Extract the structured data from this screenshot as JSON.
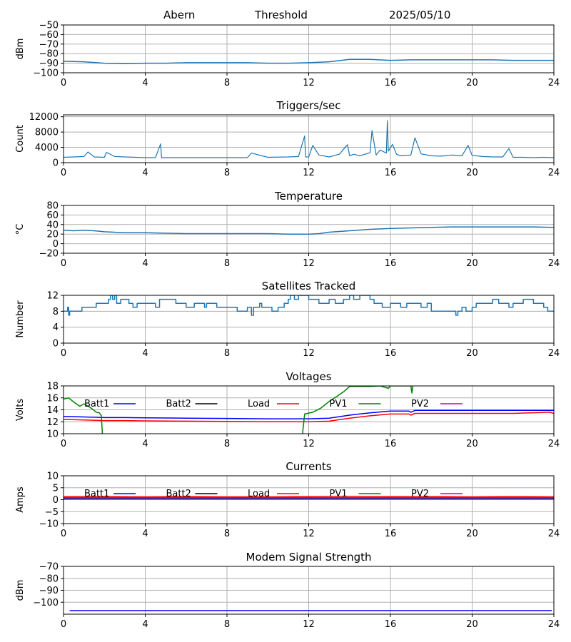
{
  "header": {
    "station": "Abern",
    "mode": "Threshold",
    "date": "2025/05/10"
  },
  "colors": {
    "series": "#1f77b4",
    "grid": "#b0b0b0",
    "batt1": "#0000ff",
    "batt2": "#000000",
    "load": "#ff0000",
    "pv1": "#008000",
    "pv2": "#bf00bf"
  },
  "chart_data": [
    {
      "id": "threshold",
      "type": "line",
      "title": "",
      "ylabel": "dBm",
      "xlim": [
        0,
        24
      ],
      "xticks": [
        0,
        4,
        8,
        12,
        16,
        20,
        24
      ],
      "ylim": [
        -100,
        -50
      ],
      "yticks": [
        -100,
        -90,
        -80,
        -70,
        -60,
        -50
      ],
      "grid": true,
      "legend": null,
      "series": [
        {
          "color": "#1f77b4",
          "width": 1.5,
          "x": [
            0,
            1,
            2,
            3,
            4,
            5,
            6,
            7,
            8,
            9,
            10,
            11,
            12,
            13,
            14,
            15,
            16,
            17,
            18,
            19,
            20,
            21,
            22,
            23,
            24
          ],
          "y": [
            -88,
            -88.5,
            -90,
            -90.5,
            -90,
            -90,
            -89.5,
            -89.5,
            -89.5,
            -89.5,
            -90,
            -90,
            -89.5,
            -88.5,
            -86,
            -86,
            -87,
            -86.5,
            -86.5,
            -86.5,
            -86.5,
            -86.5,
            -87,
            -87,
            -87
          ]
        }
      ]
    },
    {
      "id": "triggers",
      "type": "line",
      "title": "Triggers/sec",
      "ylabel": "Count",
      "xlim": [
        0,
        24
      ],
      "xticks": [
        0,
        4,
        8,
        12,
        16,
        20,
        24
      ],
      "ylim": [
        0,
        12500
      ],
      "yticks": [
        0,
        4000,
        8000,
        12000
      ],
      "grid": true,
      "legend": null,
      "series": [
        {
          "color": "#1f77b4",
          "width": 1.2,
          "x": [
            0,
            0.5,
            1,
            1.2,
            1.5,
            2,
            2.1,
            2.5,
            3,
            3.5,
            4,
            4.5,
            4.75,
            4.8,
            5,
            6,
            7,
            8,
            9,
            9.2,
            10,
            11,
            11.5,
            11.8,
            11.85,
            12,
            12.2,
            12.5,
            13,
            13.5,
            13.9,
            14,
            14.2,
            14.5,
            15,
            15.1,
            15.3,
            15.5,
            15.8,
            15.85,
            15.9,
            16.1,
            16.3,
            16.5,
            17,
            17.2,
            17.5,
            18,
            18.5,
            19,
            19.5,
            19.8,
            20,
            20.5,
            21,
            21.5,
            21.8,
            22,
            22.5,
            23,
            23.5,
            24
          ],
          "y": [
            1400,
            1500,
            1600,
            2800,
            1500,
            1400,
            2700,
            1600,
            1500,
            1400,
            1300,
            1300,
            4900,
            1300,
            1300,
            1300,
            1300,
            1300,
            1300,
            2500,
            1400,
            1500,
            1600,
            7000,
            1500,
            1500,
            4500,
            2000,
            1500,
            2200,
            4700,
            1800,
            2200,
            1800,
            2600,
            8400,
            2000,
            3300,
            2500,
            11000,
            3000,
            4800,
            2200,
            1800,
            2000,
            6500,
            2300,
            1800,
            1700,
            2000,
            1800,
            4500,
            1900,
            1600,
            1500,
            1500,
            3700,
            1400,
            1400,
            1300,
            1400,
            1300
          ]
        }
      ]
    },
    {
      "id": "temperature",
      "type": "line",
      "title": "Temperature",
      "ylabel": "°C",
      "xlim": [
        0,
        24
      ],
      "xticks": [
        0,
        4,
        8,
        12,
        16,
        20,
        24
      ],
      "ylim": [
        -20,
        80
      ],
      "yticks": [
        -20,
        0,
        20,
        40,
        60,
        80
      ],
      "grid": true,
      "legend": null,
      "series": [
        {
          "color": "#1f77b4",
          "width": 1.5,
          "x": [
            0,
            0.5,
            1,
            1.5,
            2,
            3,
            4,
            5,
            6,
            7,
            8,
            9,
            10,
            11,
            12,
            12.5,
            13,
            14,
            15,
            16,
            17,
            18,
            19,
            20,
            21,
            22,
            23,
            24
          ],
          "y": [
            28,
            27,
            28,
            27,
            25,
            23,
            23,
            22,
            21,
            21,
            21,
            21,
            21,
            20,
            20,
            21,
            24,
            27,
            30,
            32,
            33,
            34,
            35,
            35,
            35,
            35,
            35,
            34
          ]
        }
      ]
    },
    {
      "id": "satellites",
      "type": "line",
      "title": "Satellites Tracked",
      "ylabel": "Number",
      "xlim": [
        0,
        24
      ],
      "xticks": [
        0,
        4,
        8,
        12,
        16,
        20,
        24
      ],
      "ylim": [
        0,
        12
      ],
      "yticks": [
        0,
        4,
        8,
        12
      ],
      "grid": true,
      "legend": null,
      "step": true,
      "series": [
        {
          "color": "#1f77b4",
          "width": 1.5,
          "x": [
            0,
            0.2,
            0.25,
            0.3,
            0.9,
            1.6,
            2.2,
            2.3,
            2.4,
            2.5,
            2.6,
            2.8,
            3.2,
            3.4,
            3.6,
            4,
            4.5,
            4.7,
            5.5,
            6,
            6.4,
            6.9,
            7,
            7.5,
            8,
            8.5,
            9,
            9.2,
            9.3,
            9.6,
            9.7,
            10.2,
            10.5,
            10.8,
            11,
            11.1,
            11.3,
            11.5,
            12,
            12.5,
            13,
            13.3,
            13.7,
            14,
            14.2,
            14.5,
            15,
            15.2,
            15.6,
            16,
            16.3,
            16.5,
            16.8,
            17,
            17.5,
            17.8,
            18,
            18.5,
            19,
            19.2,
            19.3,
            19.5,
            19.7,
            20,
            20.2,
            21,
            21.3,
            21.8,
            22,
            22.5,
            23,
            23.5,
            23.7,
            24
          ],
          "y": [
            8,
            9,
            7,
            8,
            9,
            10,
            11,
            12,
            11,
            12,
            10,
            11,
            10,
            9,
            10,
            10,
            9,
            11,
            10,
            9,
            10,
            9,
            10,
            9,
            9,
            8,
            9,
            7,
            9,
            10,
            9,
            8,
            9,
            10,
            11,
            12,
            11,
            12,
            11,
            10,
            11,
            10,
            11,
            12,
            11,
            12,
            11,
            10,
            9,
            10,
            10,
            9,
            10,
            10,
            9,
            10,
            8,
            8,
            8,
            7,
            8,
            9,
            8,
            9,
            10,
            11,
            10,
            9,
            10,
            11,
            10,
            9,
            8,
            8
          ]
        }
      ]
    },
    {
      "id": "voltages",
      "type": "line",
      "title": "Voltages",
      "ylabel": "Volts",
      "xlim": [
        0,
        24
      ],
      "xticks": [
        0,
        4,
        8,
        12,
        16,
        20,
        24
      ],
      "ylim": [
        10,
        18
      ],
      "yticks": [
        10,
        12,
        14,
        16,
        18
      ],
      "grid": true,
      "legend": "top",
      "series": [
        {
          "name": "Batt1",
          "color": "#0000ff",
          "width": 1.5,
          "x": [
            0,
            1,
            2,
            3,
            4,
            6,
            8,
            10,
            12,
            13,
            14,
            15,
            16,
            16.9,
            17,
            17.2,
            18,
            20,
            22,
            24
          ],
          "y": [
            12.9,
            12.8,
            12.7,
            12.7,
            12.65,
            12.6,
            12.55,
            12.5,
            12.5,
            12.6,
            13.1,
            13.5,
            13.8,
            13.8,
            13.6,
            13.9,
            13.9,
            13.9,
            13.9,
            13.9
          ]
        },
        {
          "name": "Batt2",
          "color": "#000000",
          "width": 1.5,
          "x": [],
          "y": []
        },
        {
          "name": "Load",
          "color": "#ff0000",
          "width": 1.5,
          "x": [
            0,
            1,
            2,
            3,
            4,
            6,
            8,
            10,
            12,
            13,
            14,
            15,
            16,
            16.9,
            17,
            17.2,
            18,
            20,
            22,
            23.8,
            24
          ],
          "y": [
            12.4,
            12.3,
            12.2,
            12.2,
            12.15,
            12.1,
            12.05,
            12.0,
            12.0,
            12.1,
            12.6,
            13.0,
            13.3,
            13.3,
            13.1,
            13.4,
            13.4,
            13.4,
            13.4,
            13.6,
            13.4
          ]
        },
        {
          "name": "PV1",
          "color": "#008000",
          "width": 1.5,
          "x": [
            0,
            0.25,
            0.5,
            0.8,
            1.0,
            1.3,
            1.5,
            1.6,
            1.75,
            1.85,
            1.9
          ],
          "y": [
            15.8,
            16.0,
            15.3,
            14.6,
            15.0,
            14.4,
            13.9,
            13.6,
            13.5,
            13.0,
            10
          ],
          "x2": [
            11.7,
            11.8,
            12.2,
            12.6,
            13.0,
            13.4,
            13.7,
            14.0,
            15.0,
            15.5,
            15.9,
            16.0,
            16.5,
            17.0,
            17.05,
            17.1
          ],
          "y2": [
            10,
            13.3,
            13.6,
            14.3,
            15.4,
            16.3,
            17.0,
            17.9,
            17.9,
            18.0,
            17.6,
            18.0,
            18.0,
            18.0,
            16.8,
            18.0
          ]
        },
        {
          "name": "PV2",
          "color": "#bf00bf",
          "width": 1.5,
          "x": [],
          "y": []
        }
      ]
    },
    {
      "id": "currents",
      "type": "line",
      "title": "Currents",
      "ylabel": "Amps",
      "xlim": [
        0,
        24
      ],
      "xticks": [
        0,
        4,
        8,
        12,
        16,
        20,
        24
      ],
      "ylim": [
        -10,
        10
      ],
      "yticks": [
        -10,
        -5,
        0,
        5,
        10
      ],
      "grid": true,
      "legend": "top",
      "series": [
        {
          "name": "Batt1",
          "color": "#0000ff",
          "width": 1.5,
          "x": [
            0,
            24
          ],
          "y": [
            0.5,
            0.5
          ]
        },
        {
          "name": "Batt2",
          "color": "#000000",
          "width": 1.5,
          "x": [],
          "y": []
        },
        {
          "name": "Load",
          "color": "#ff0000",
          "width": 1.5,
          "x": [
            0,
            2,
            4,
            6,
            8,
            10,
            12,
            14,
            16,
            18,
            20,
            22,
            24
          ],
          "y": [
            1.3,
            1.3,
            1.2,
            1.3,
            1.2,
            1.2,
            1.3,
            1.4,
            1.3,
            1.3,
            1.2,
            1.3,
            1.2
          ]
        },
        {
          "name": "PV1",
          "color": "#008000",
          "width": 1.5,
          "x": [
            0,
            24
          ],
          "y": [
            0.8,
            0.8
          ]
        },
        {
          "name": "PV2",
          "color": "#bf00bf",
          "width": 1.5,
          "x": [
            0,
            24
          ],
          "y": [
            0.2,
            0.2
          ]
        }
      ]
    },
    {
      "id": "modem",
      "type": "line",
      "title": "Modem Signal Strength",
      "ylabel": "dBm",
      "xlim": [
        0,
        24
      ],
      "xticks": [
        0,
        4,
        8,
        12,
        16,
        20,
        24
      ],
      "ylim": [
        -110,
        -70
      ],
      "yticks": [
        -100,
        -90,
        -80,
        -70
      ],
      "grid": true,
      "legend": null,
      "series": [
        {
          "color": "#0000ff",
          "width": 1.5,
          "x": [
            0.3,
            23.9
          ],
          "y": [
            -107,
            -107
          ]
        }
      ]
    }
  ]
}
